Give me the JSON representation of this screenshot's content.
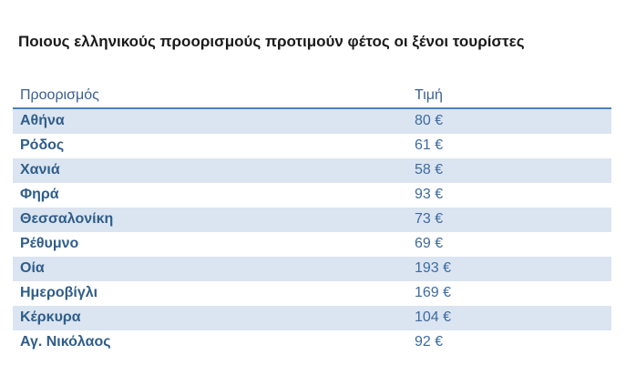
{
  "title": "Ποιους ελληνικούς προορισμούς προτιμούν φέτος οι ξένοι τουρίστες",
  "table": {
    "headers": [
      "Προορισμός",
      "Τιμή"
    ],
    "rows": [
      [
        "Αθήνα",
        "80 €"
      ],
      [
        "Ρόδος",
        "61 €"
      ],
      [
        "Χανιά",
        "58 €"
      ],
      [
        "Φηρά",
        "93 €"
      ],
      [
        "Θεσσαλονίκη",
        "73 €"
      ],
      [
        "Ρέθυμνο",
        "69 €"
      ],
      [
        "Οία",
        "193 €"
      ],
      [
        "Ημεροβίγλι",
        "169 €"
      ],
      [
        "Κέρκυρα",
        "104 €"
      ],
      [
        "Αγ. Νικόλαος",
        "92 €"
      ]
    ]
  },
  "colors": {
    "header_text": "#3b5f8f",
    "row_text": "#2f5d8a",
    "band": "#dbe5f1",
    "rule": "#4f81bd"
  }
}
